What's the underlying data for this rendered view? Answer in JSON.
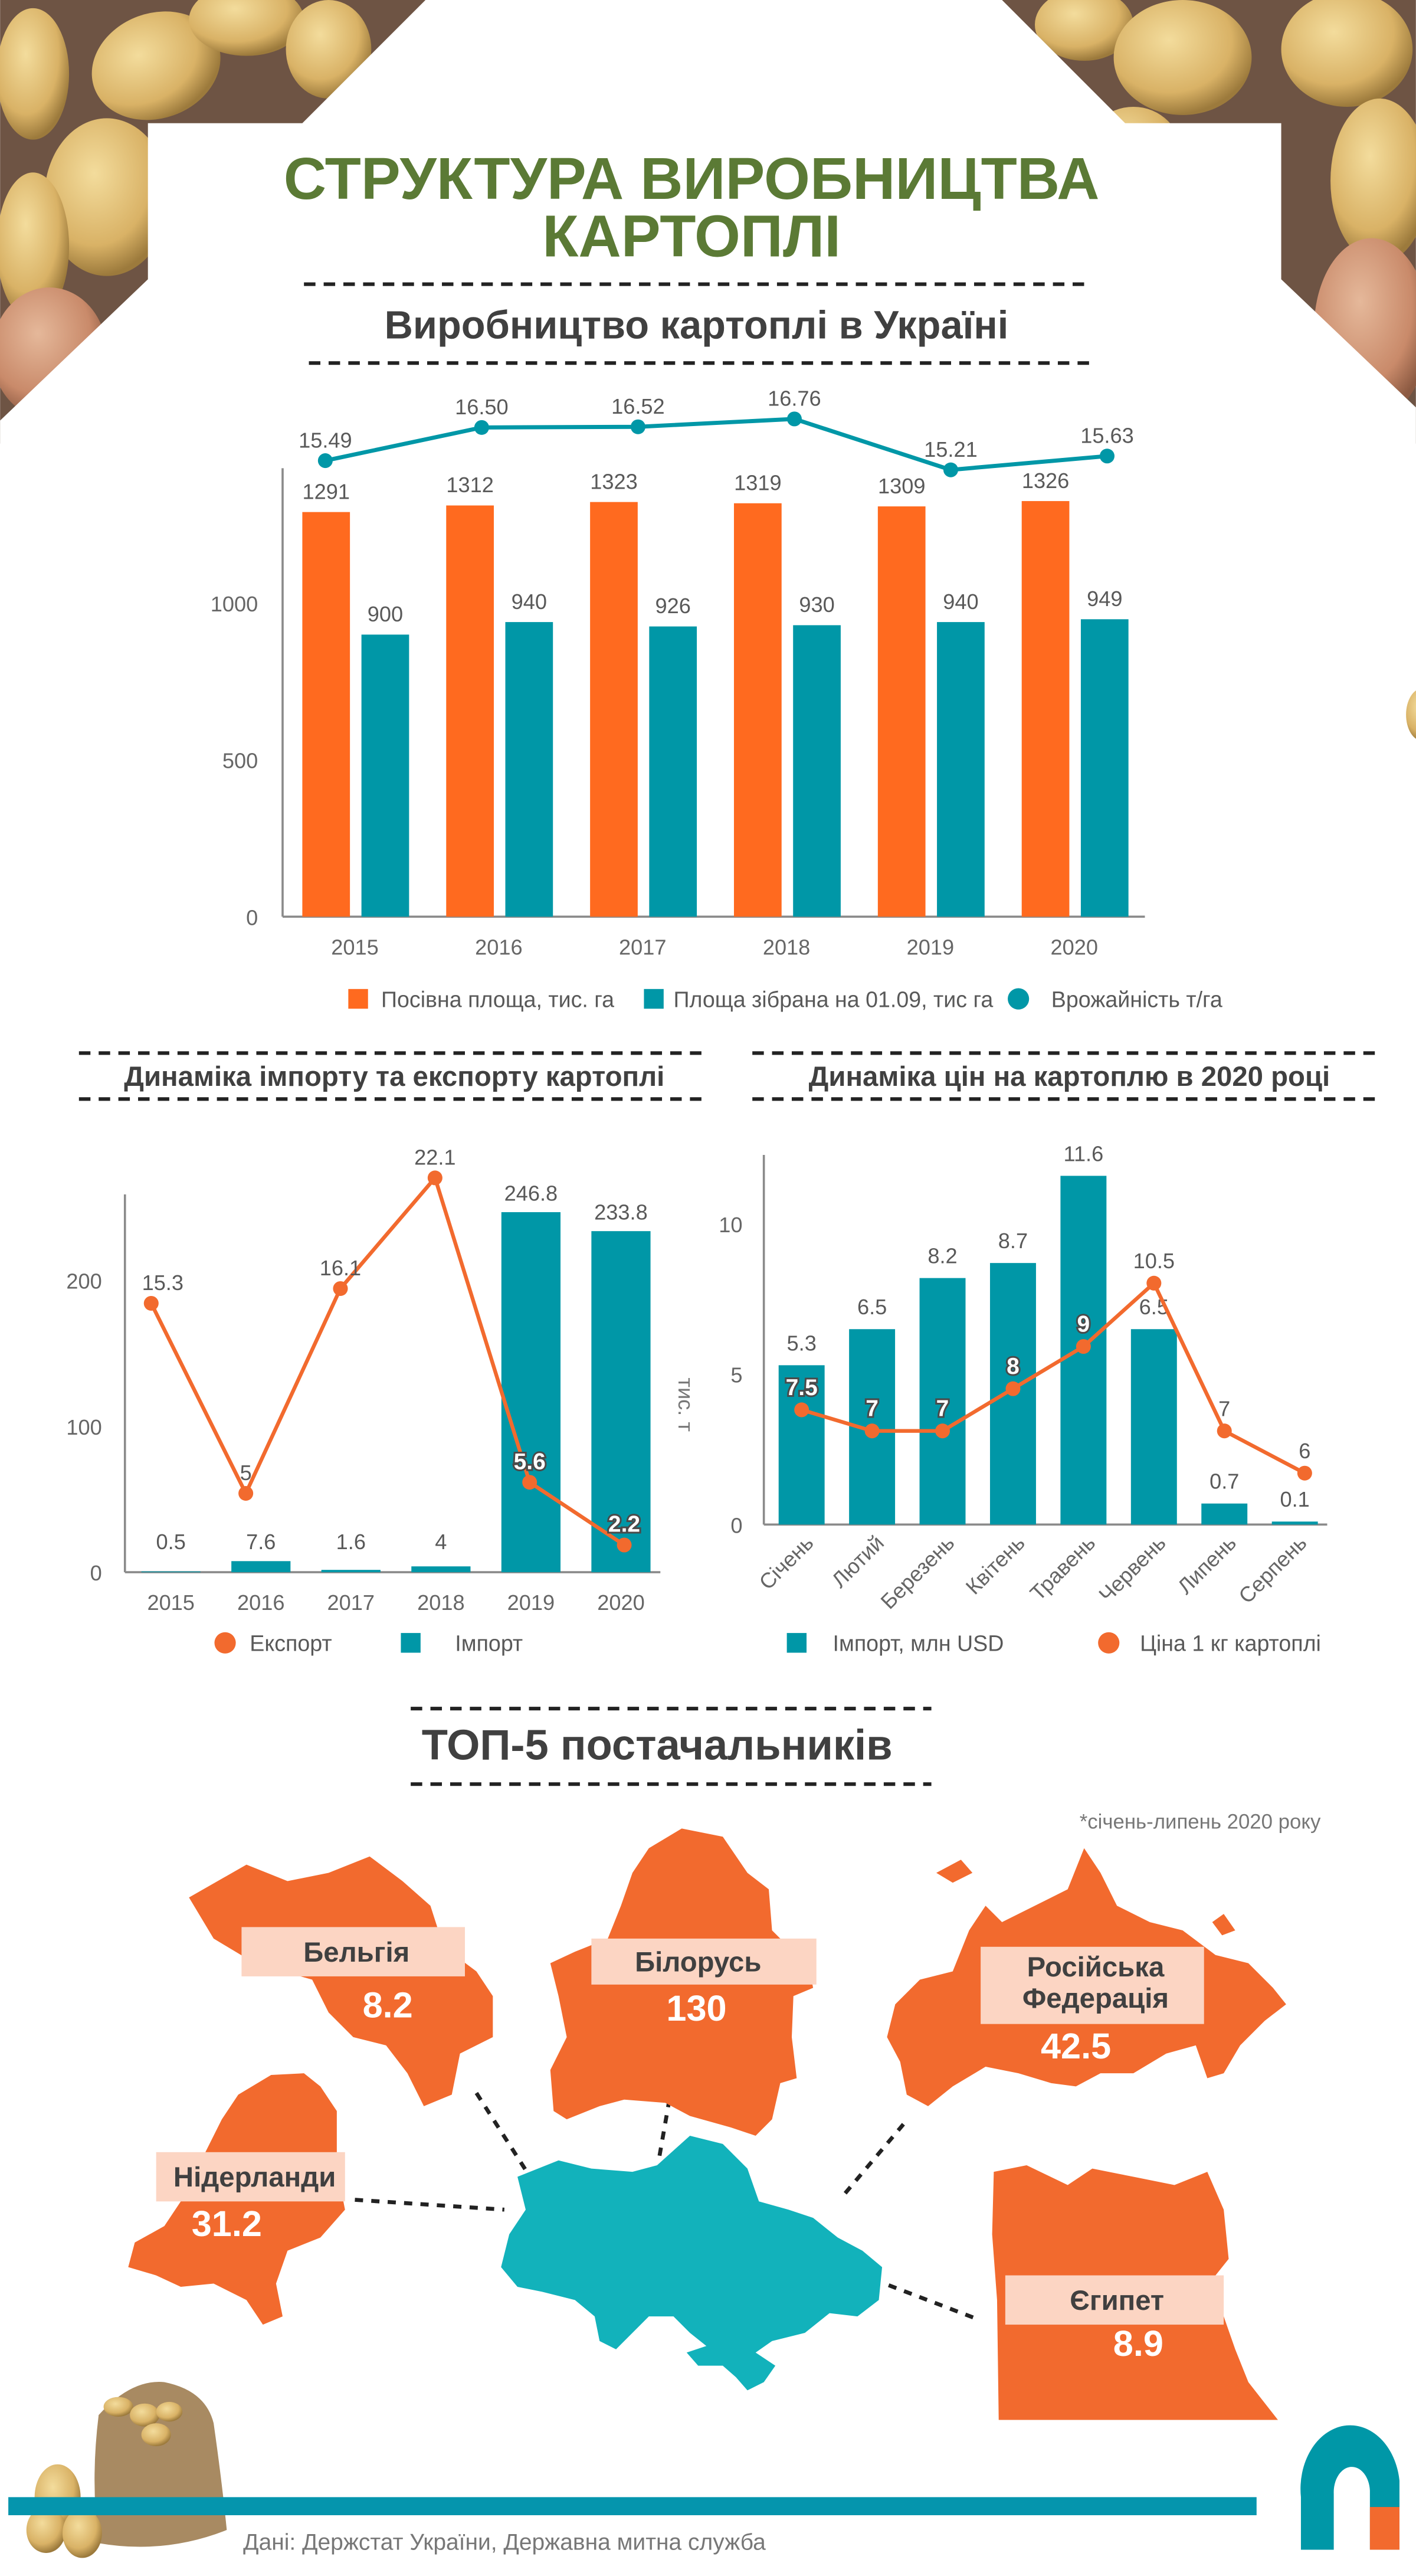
{
  "header": {
    "title_line1": "СТРУКТУРА ВИРОБНИЦТВА",
    "title_line2": "КАРТОПЛІ",
    "subtitle": "Виробництво картоплі в Україні"
  },
  "colors": {
    "orange_bar": "#ff6a1f",
    "orange": "#f26a2e",
    "teal": "#0097a7",
    "ukraine": "#12b2bb",
    "title_green": "#5b7a35",
    "label_bg": "#fcd5c3",
    "footer_bar": "#0595ad"
  },
  "chart_data": [
    {
      "type": "bar+line",
      "categories": [
        "2015",
        "2016",
        "2017",
        "2018",
        "2019",
        "2020"
      ],
      "yticks": [
        "0",
        "500",
        "1000"
      ],
      "ylim": [
        0,
        1430
      ],
      "grid": false,
      "legend": "bottom",
      "series": [
        {
          "name": "Посівна площа, тис. га",
          "type": "bar",
          "color": "#ff6a1f",
          "values": [
            1291,
            1312,
            1323,
            1319,
            1309,
            1326
          ]
        },
        {
          "name": "Площа зібрана на 01.09, тис га",
          "type": "bar",
          "color": "#0097a7",
          "values": [
            900,
            940,
            926,
            930,
            940,
            949
          ]
        },
        {
          "name": "Врожайність т/га",
          "type": "line",
          "axis": "secondary",
          "color": "#0097a7",
          "values": [
            15.49,
            16.5,
            16.52,
            16.76,
            15.21,
            15.63
          ],
          "labels": [
            "15.49",
            "16.50",
            "16.52",
            "16.76",
            "15.21",
            "15.63"
          ]
        }
      ]
    },
    {
      "type": "bar+line",
      "title": "Динаміка імпорту та експорту картоплі",
      "ylabel": "тис. т",
      "categories": [
        "2015",
        "2016",
        "2017",
        "2018",
        "2019",
        "2020"
      ],
      "yticks": [
        "0",
        "100",
        "200"
      ],
      "ylim": [
        0,
        260
      ],
      "grid": false,
      "legend": "bottom",
      "series": [
        {
          "name": "Експорт",
          "type": "line",
          "axis": "secondary",
          "color": "#f26a2e",
          "values": [
            15.3,
            5,
            16.1,
            22.1,
            5.6,
            2.2
          ]
        },
        {
          "name": "Імпорт",
          "type": "bar",
          "color": "#0097a7",
          "values": [
            0.5,
            7.6,
            1.6,
            4,
            246.8,
            233.8
          ]
        }
      ]
    },
    {
      "type": "bar+line",
      "title": "Динаміка цін на картоплю в 2020 році",
      "categories": [
        "Січень",
        "Лютий",
        "Березень",
        "Квітень",
        "Травень",
        "Червень",
        "Липень",
        "Серпень"
      ],
      "yticks": [
        "0",
        "5",
        "10"
      ],
      "ylim": [
        0,
        12.3
      ],
      "grid": false,
      "legend": "bottom",
      "series": [
        {
          "name": "Імпорт, млн USD",
          "type": "bar",
          "color": "#0097a7",
          "values": [
            5.3,
            6.5,
            8.2,
            8.7,
            11.6,
            6.5,
            0.7,
            0.1
          ]
        },
        {
          "name": "Ціна 1 кг картоплі",
          "type": "line",
          "axis": "secondary",
          "color": "#f26a2e",
          "values": [
            7.5,
            7,
            7,
            8,
            9,
            10.5,
            7,
            6
          ]
        }
      ]
    }
  ],
  "suppliers": {
    "title": "ТОП-5 постачальників",
    "note": "*січень-липень 2020 року",
    "items": [
      {
        "country": "Бельгія",
        "value": "8.2"
      },
      {
        "country": "Білорусь",
        "value": "130"
      },
      {
        "country_line1": "Російська",
        "country_line2": "Федерація",
        "value": "42.5"
      },
      {
        "country": "Нідерланди",
        "value": "31.2"
      },
      {
        "country": "Єгипет",
        "value": "8.9"
      }
    ]
  },
  "footer": {
    "source": "Дані: Держстат України, Державна митна служба"
  }
}
